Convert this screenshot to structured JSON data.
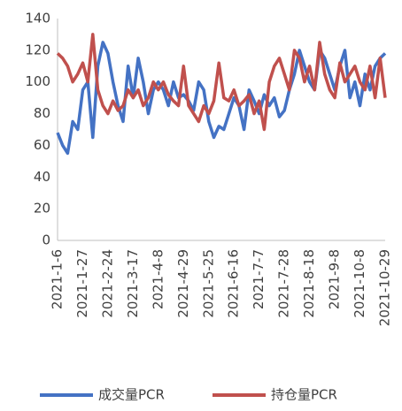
{
  "chart_data": {
    "type": "line",
    "categories": [
      "2021-1-6",
      null,
      null,
      null,
      null,
      "2021-1-27",
      null,
      null,
      null,
      null,
      "2021-2-24",
      null,
      null,
      null,
      null,
      "2021-3-17",
      null,
      null,
      null,
      null,
      "2021-4-8",
      null,
      null,
      null,
      null,
      "2021-4-29",
      null,
      null,
      null,
      null,
      "2021-5-25",
      null,
      null,
      null,
      null,
      "2021-6-16",
      null,
      null,
      null,
      null,
      "2021-7-7",
      null,
      null,
      null,
      null,
      "2021-7-28",
      null,
      null,
      null,
      null,
      "2021-8-18",
      null,
      null,
      null,
      null,
      "2021-9-8",
      null,
      null,
      null,
      null,
      "2021-10-8",
      null,
      null,
      null,
      null,
      "2021-10-29"
    ],
    "series": [
      {
        "name": "成交量PCR",
        "color": "#4472c4",
        "values": [
          68,
          60,
          55,
          75,
          70,
          95,
          100,
          65,
          110,
          125,
          118,
          100,
          85,
          75,
          110,
          90,
          115,
          100,
          80,
          95,
          100,
          95,
          85,
          100,
          90,
          92,
          88,
          82,
          100,
          95,
          75,
          65,
          72,
          70,
          80,
          90,
          85,
          70,
          95,
          88,
          80,
          92,
          85,
          90,
          78,
          82,
          95,
          105,
          120,
          110,
          100,
          95,
          120,
          115,
          105,
          95,
          110,
          120,
          90,
          100,
          85,
          105,
          95,
          110,
          115,
          118
        ]
      },
      {
        "name": "持仓量PCR",
        "color": "#c0504d",
        "values": [
          118,
          115,
          110,
          100,
          105,
          112,
          100,
          130,
          95,
          85,
          80,
          88,
          82,
          85,
          95,
          90,
          95,
          85,
          90,
          100,
          95,
          100,
          92,
          88,
          85,
          110,
          85,
          80,
          75,
          85,
          80,
          88,
          112,
          90,
          88,
          95,
          85,
          88,
          92,
          80,
          88,
          70,
          100,
          110,
          115,
          105,
          95,
          120,
          115,
          100,
          110,
          95,
          125,
          105,
          95,
          90,
          112,
          100,
          105,
          110,
          100,
          95,
          110,
          90,
          115,
          90
        ]
      }
    ],
    "ylim": [
      0,
      140
    ],
    "yticks": [
      0,
      20,
      40,
      60,
      80,
      100,
      120,
      140
    ],
    "grid": false
  }
}
